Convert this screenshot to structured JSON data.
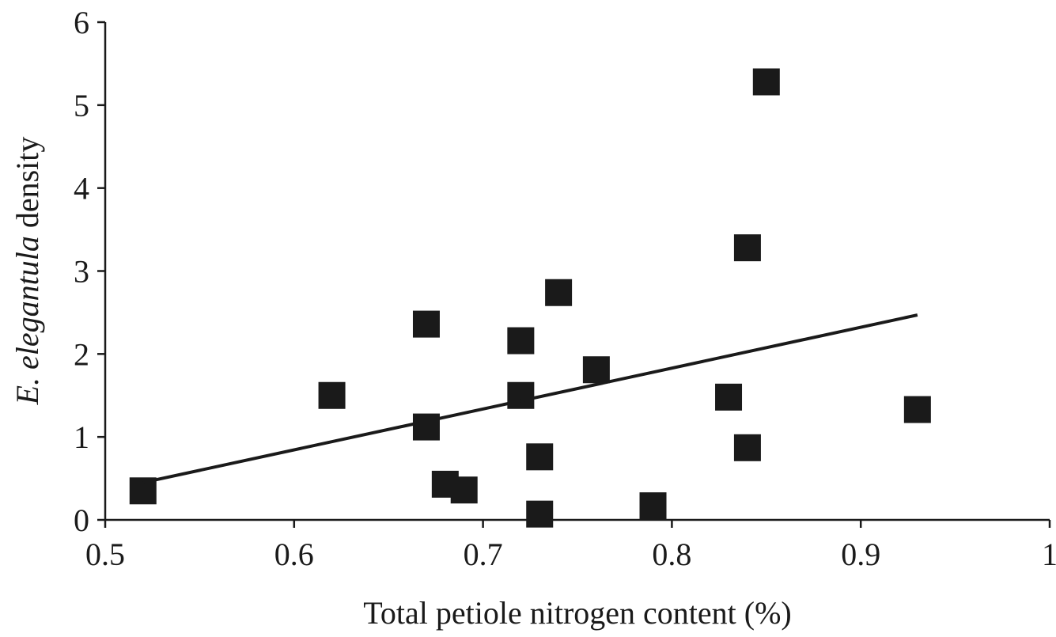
{
  "chart_data": {
    "type": "scatter",
    "x_label": "Total petiole nitrogen content (%)",
    "y_label": [
      {
        "text": "E. elegantula",
        "italic": true
      },
      {
        "text": " density",
        "italic": false
      }
    ],
    "x": [
      0.52,
      0.62,
      0.67,
      0.67,
      0.68,
      0.69,
      0.72,
      0.72,
      0.73,
      0.73,
      0.74,
      0.76,
      0.79,
      0.83,
      0.84,
      0.84,
      0.85,
      0.93
    ],
    "y": [
      0.35,
      1.5,
      2.36,
      1.12,
      0.43,
      0.36,
      2.16,
      1.5,
      0.76,
      0.07,
      2.74,
      1.81,
      0.17,
      1.48,
      3.28,
      0.87,
      5.28,
      1.33
    ],
    "color": "#1a1a1a",
    "trendline": {
      "x": [
        0.52,
        0.93
      ],
      "y": [
        0.45,
        2.47
      ]
    },
    "xlim": [
      0.5,
      1
    ],
    "xticks": [
      0.5,
      0.6,
      0.7,
      0.8,
      0.9,
      1
    ],
    "ylim": [
      0,
      6
    ],
    "yticks": [
      0,
      1,
      2,
      3,
      4,
      5,
      6
    ],
    "grid": false
  }
}
